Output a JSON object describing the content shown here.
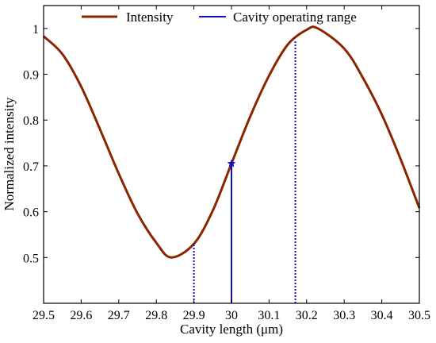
{
  "chart_data": {
    "type": "line",
    "xlabel": "Cavity length (μm)",
    "ylabel": "Normalized intensity",
    "xlim": [
      29.5,
      30.5
    ],
    "ylim": [
      0.4,
      1.05
    ],
    "xticks": [
      "29.5",
      "29.6",
      "29.7",
      "29.8",
      "29.9",
      "30",
      "30.1",
      "30.2",
      "30.3",
      "30.4",
      "30.5"
    ],
    "yticks": [
      "0.5",
      "0.6",
      "0.7",
      "0.8",
      "0.9",
      "1"
    ],
    "grid": false,
    "legend_position": "top",
    "series": [
      {
        "name": "Intensity",
        "color": "#8b2500",
        "x": [
          29.5,
          29.55,
          29.6,
          29.65,
          29.7,
          29.75,
          29.8,
          29.84,
          29.9,
          29.95,
          30.0,
          30.05,
          30.1,
          30.15,
          30.2,
          30.23,
          30.3,
          30.35,
          30.4,
          30.45,
          30.5
        ],
        "y": [
          0.983,
          0.944,
          0.873,
          0.78,
          0.683,
          0.596,
          0.532,
          0.5,
          0.53,
          0.602,
          0.705,
          0.808,
          0.897,
          0.965,
          0.997,
          1.0,
          0.956,
          0.892,
          0.812,
          0.715,
          0.608
        ]
      },
      {
        "name": "Cavity operating range",
        "color": "#1010c0",
        "marker": {
          "x": 30.0,
          "y": 0.705
        },
        "solid_line": {
          "x": 30.0,
          "y_top": 0.705
        },
        "dotted_lines": [
          {
            "x": 29.9,
            "y_top": 0.53
          },
          {
            "x": 30.17,
            "y_top": 0.975
          }
        ]
      }
    ]
  }
}
